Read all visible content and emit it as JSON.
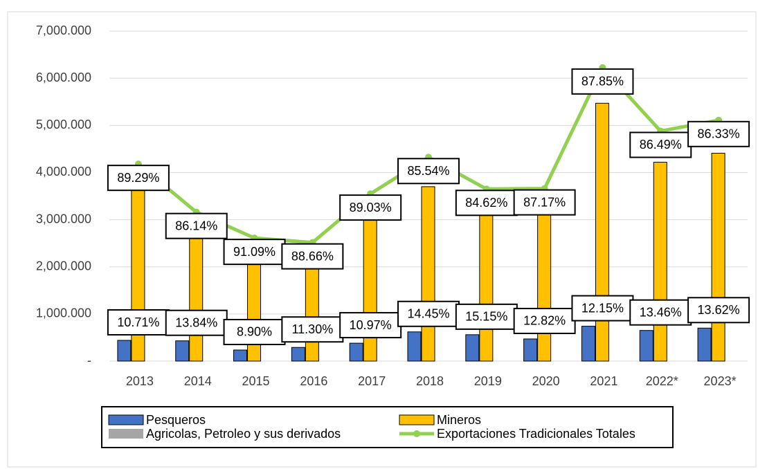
{
  "chart_data": {
    "type": "bar",
    "categories": [
      "2013",
      "2014",
      "2015",
      "2016",
      "2017",
      "2018",
      "2019",
      "2020",
      "2021",
      "2022*",
      "2023*"
    ],
    "series": [
      {
        "name": "Pesqueros",
        "color": "#4472c4",
        "values": [
          440,
          430,
          235,
          290,
          380,
          620,
          560,
          470,
          740,
          650,
          700
        ],
        "share_labels": [
          "10.71%",
          "13.84%",
          "8.90%",
          "11.30%",
          "10.97%",
          "14.45%",
          "15.15%",
          "12.82%",
          "12.15%",
          "13.46%",
          "13.62%"
        ]
      },
      {
        "name": "Mineros",
        "color": "#ffc000",
        "values": [
          3730,
          2720,
          2380,
          2230,
          3160,
          3700,
          3090,
          3190,
          5470,
          4220,
          4410
        ],
        "share_labels": [
          "89.29%",
          "86.14%",
          "91.09%",
          "88.66%",
          "89.03%",
          "85.54%",
          "84.62%",
          "87.17%",
          "87.85%",
          "86.49%",
          "86.33%"
        ]
      },
      {
        "name": "Agricolas, Petroleo y sus derivados",
        "color": "#a5a5a5",
        "values": [
          0,
          0,
          0,
          0,
          0,
          0,
          0,
          0,
          0,
          0,
          0
        ]
      },
      {
        "name": "Exportaciones Tradicionales Totales",
        "color": "#92d050",
        "type": "line",
        "values": [
          4180,
          3160,
          2610,
          2515,
          3550,
          4325,
          3650,
          3660,
          6225,
          4880,
          5110
        ]
      }
    ],
    "ylim": [
      0,
      7000
    ],
    "yticks": [
      {
        "value": 0,
        "label": "-"
      },
      {
        "value": 1000,
        "label": "1,000.000"
      },
      {
        "value": 2000,
        "label": "2,000.000"
      },
      {
        "value": 3000,
        "label": "3,000.000"
      },
      {
        "value": 4000,
        "label": "4,000.000"
      },
      {
        "value": 5000,
        "label": "5,000.000"
      },
      {
        "value": 6000,
        "label": "6,000.000"
      },
      {
        "value": 7000,
        "label": "7,000.000"
      }
    ],
    "grid": true
  }
}
